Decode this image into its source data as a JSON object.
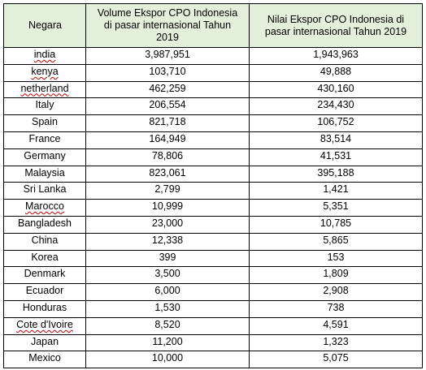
{
  "table": {
    "headers": [
      "Negara",
      "Volume Ekspor CPO Indonesia di pasar internasional Tahun 2019",
      "Nilai Ekspor CPO Indonesia di pasar internasional Tahun 2019"
    ],
    "header_lines": {
      "col2": [
        "Volume Ekspor CPO Indonesia",
        "di pasar internasional Tahun",
        "2019"
      ],
      "col3": [
        "Nilai Ekspor CPO Indonesia di",
        "pasar internasional Tahun 2019"
      ]
    },
    "rows": [
      {
        "negara": "india",
        "volume": "3,987,951",
        "nilai": "1,943,963"
      },
      {
        "negara": "kenya",
        "volume": "103,710",
        "nilai": "49,888"
      },
      {
        "negara": "netherland",
        "volume": "462,259",
        "nilai": "430,160"
      },
      {
        "negara": "Italy",
        "volume": "206,554",
        "nilai": "234,430"
      },
      {
        "negara": "Spain",
        "volume": "821,718",
        "nilai": "106,752"
      },
      {
        "negara": "France",
        "volume": "164,949",
        "nilai": "83,514"
      },
      {
        "negara": "Germany",
        "volume": "78,806",
        "nilai": "41,531"
      },
      {
        "negara": "Malaysia",
        "volume": "823,061",
        "nilai": "395,188"
      },
      {
        "negara": "Sri Lanka",
        "volume": "2,799",
        "nilai": "1,421"
      },
      {
        "negara": "Marocco",
        "volume": "10,999",
        "nilai": "5,351"
      },
      {
        "negara": "Bangladesh",
        "volume": "23,000",
        "nilai": "10,785"
      },
      {
        "negara": "China",
        "volume": "12,338",
        "nilai": "5,865"
      },
      {
        "negara": "Korea",
        "volume": "399",
        "nilai": "153"
      },
      {
        "negara": "Denmark",
        "volume": "3,500",
        "nilai": "1,809"
      },
      {
        "negara": "Ecuador",
        "volume": "6,000",
        "nilai": "2,908"
      },
      {
        "negara": "Honduras",
        "volume": "1,530",
        "nilai": "738"
      },
      {
        "negara": "Cote d'Ivoire",
        "volume": "8,520",
        "nilai": "4,591"
      },
      {
        "negara": "Japan",
        "volume": "11,200",
        "nilai": "1,323"
      },
      {
        "negara": "Mexico",
        "volume": "10,000",
        "nilai": "5,075"
      }
    ],
    "header_fill": "#e2efda",
    "spellcheck_underline_color": "#c00000"
  }
}
